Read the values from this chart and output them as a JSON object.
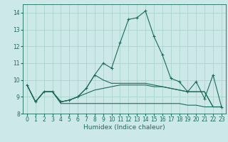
{
  "xlabel": "Humidex (Indice chaleur)",
  "bg_color": "#cde8e8",
  "grid_color": "#a8d4cc",
  "line_color": "#1a6b5a",
  "xlim": [
    -0.5,
    23.5
  ],
  "ylim": [
    8,
    14.5
  ],
  "yticks": [
    8,
    9,
    10,
    11,
    12,
    13,
    14
  ],
  "xticks": [
    0,
    1,
    2,
    3,
    4,
    5,
    6,
    7,
    8,
    9,
    10,
    11,
    12,
    13,
    14,
    15,
    16,
    17,
    18,
    19,
    20,
    21,
    22,
    23
  ],
  "line_main": {
    "x": [
      0,
      1,
      2,
      3,
      4,
      5,
      6,
      7,
      8,
      9,
      10,
      11,
      12,
      13,
      14,
      15,
      16,
      17,
      18,
      19,
      20,
      21,
      22,
      23
    ],
    "y": [
      9.7,
      8.7,
      9.3,
      9.3,
      8.7,
      8.8,
      9.0,
      9.5,
      10.3,
      11.0,
      10.7,
      12.2,
      13.6,
      13.7,
      14.1,
      12.6,
      11.5,
      10.1,
      9.9,
      9.3,
      9.9,
      8.9,
      10.3,
      8.4
    ]
  },
  "line_flat1": {
    "x": [
      0,
      1,
      2,
      3,
      4,
      5,
      6,
      7,
      8,
      9,
      10,
      11,
      12,
      13,
      14,
      15,
      16,
      17,
      18,
      19,
      20,
      21,
      22,
      23
    ],
    "y": [
      9.7,
      8.7,
      9.3,
      9.3,
      8.6,
      8.6,
      8.6,
      8.6,
      8.6,
      8.6,
      8.6,
      8.6,
      8.6,
      8.6,
      8.6,
      8.6,
      8.6,
      8.6,
      8.6,
      8.5,
      8.5,
      8.4,
      8.4,
      8.4
    ]
  },
  "line_flat2": {
    "x": [
      0,
      1,
      2,
      3,
      4,
      5,
      6,
      7,
      8,
      9,
      10,
      11,
      12,
      13,
      14,
      15,
      16,
      17,
      18,
      19,
      20,
      21,
      22,
      23
    ],
    "y": [
      9.7,
      8.7,
      9.3,
      9.3,
      8.7,
      8.8,
      9.0,
      9.2,
      9.4,
      9.5,
      9.6,
      9.7,
      9.7,
      9.7,
      9.7,
      9.6,
      9.6,
      9.5,
      9.4,
      9.3,
      9.3,
      9.3,
      8.4,
      8.4
    ]
  },
  "line_flat3": {
    "x": [
      0,
      1,
      2,
      3,
      4,
      5,
      6,
      7,
      8,
      9,
      10,
      11,
      12,
      13,
      14,
      15,
      16,
      17,
      18,
      19,
      20,
      21,
      22,
      23
    ],
    "y": [
      9.7,
      8.7,
      9.3,
      9.3,
      8.7,
      8.8,
      9.0,
      9.5,
      10.3,
      10.0,
      9.8,
      9.8,
      9.8,
      9.8,
      9.8,
      9.7,
      9.6,
      9.5,
      9.4,
      9.3,
      9.3,
      9.3,
      8.4,
      8.4
    ]
  }
}
